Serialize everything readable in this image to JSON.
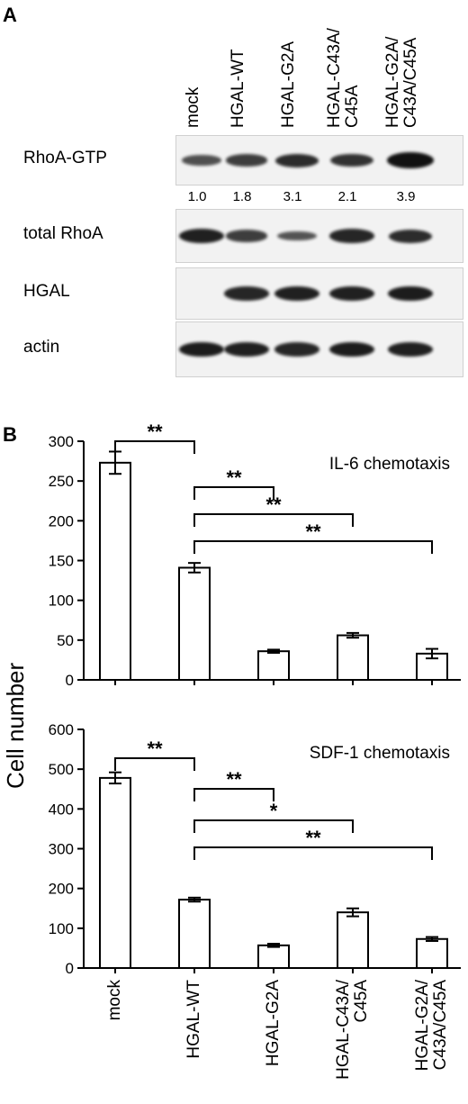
{
  "panel_a": {
    "letter": "A",
    "lanes": [
      "mock",
      "HGAL-WT",
      "HGAL-G2A",
      "HGAL-C43A/\nC45A",
      "HGAL-G2A/\nC43A/C45A"
    ],
    "blots": [
      {
        "label": "RhoA-GTP",
        "intensities": [
          0.45,
          0.6,
          0.75,
          0.7,
          1.0
        ]
      },
      {
        "label": "total RhoA",
        "intensities": [
          0.85,
          0.6,
          0.4,
          0.8,
          0.75
        ]
      },
      {
        "label": "HGAL",
        "intensities": [
          0,
          0.8,
          0.85,
          0.85,
          0.9
        ]
      },
      {
        "label": "actin",
        "intensities": [
          0.9,
          0.85,
          0.8,
          0.9,
          0.85
        ]
      }
    ],
    "quantification": [
      "1.0",
      "1.8",
      "3.1",
      "2.1",
      "3.9"
    ]
  },
  "panel_b": {
    "letter": "B",
    "ylabel": "Cell number"
  },
  "chart_data": [
    {
      "type": "bar",
      "title": "IL-6 chemotaxis",
      "categories": [
        "mock",
        "HGAL-WT",
        "HGAL-G2A",
        "HGAL-C43A/\nC45A",
        "HGAL-G2A/\nC43A/C45A"
      ],
      "values": [
        273,
        141,
        36,
        56,
        33
      ],
      "errors": [
        14,
        6,
        2,
        3,
        6
      ],
      "ylim": [
        0,
        300
      ],
      "yticks": [
        "0",
        "50",
        "100",
        "150",
        "200",
        "250",
        "300"
      ],
      "significance": [
        {
          "from": 0,
          "to": 1,
          "label": "**"
        },
        {
          "from": 1,
          "to": 2,
          "label": "**"
        },
        {
          "from": 1,
          "to": 3,
          "label": "**"
        },
        {
          "from": 1,
          "to": 4,
          "label": "**"
        }
      ]
    },
    {
      "type": "bar",
      "title": "SDF-1 chemotaxis",
      "categories": [
        "mock",
        "HGAL-WT",
        "HGAL-G2A",
        "HGAL-C43A/\nC45A",
        "HGAL-G2A/\nC43A/C45A"
      ],
      "values": [
        478,
        172,
        57,
        140,
        73
      ],
      "errors": [
        14,
        5,
        4,
        10,
        5
      ],
      "ylim": [
        0,
        600
      ],
      "yticks": [
        "0",
        "100",
        "200",
        "300",
        "400",
        "500",
        "600"
      ],
      "significance": [
        {
          "from": 0,
          "to": 1,
          "label": "**"
        },
        {
          "from": 1,
          "to": 2,
          "label": "**"
        },
        {
          "from": 1,
          "to": 3,
          "label": "*"
        },
        {
          "from": 1,
          "to": 4,
          "label": "**"
        }
      ]
    }
  ]
}
